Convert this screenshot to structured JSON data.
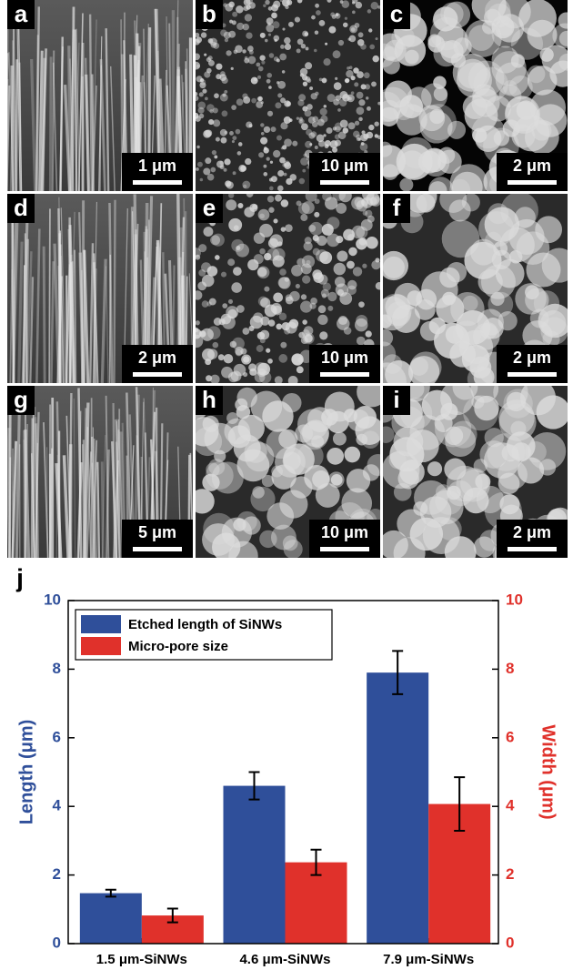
{
  "panels": [
    {
      "label": "a",
      "scale": "1 μm"
    },
    {
      "label": "b",
      "scale": "10 μm"
    },
    {
      "label": "c",
      "scale": "2 μm"
    },
    {
      "label": "d",
      "scale": "2 μm"
    },
    {
      "label": "e",
      "scale": "10 μm"
    },
    {
      "label": "f",
      "scale": "2 μm"
    },
    {
      "label": "g",
      "scale": "5 μm"
    },
    {
      "label": "h",
      "scale": "10 μm"
    },
    {
      "label": "i",
      "scale": "2 μm"
    }
  ],
  "chart_data": {
    "type": "bar",
    "panel_label": "j",
    "categories": [
      "1.5 μm-SiNWs",
      "4.6 μm-SiNWs",
      "7.9 μm-SiNWs"
    ],
    "series": [
      {
        "name": "Etched length of SiNWs",
        "color": "#2f4f9a",
        "values": [
          1.47,
          4.6,
          7.9
        ],
        "errors": [
          0.1,
          0.4,
          0.63
        ]
      },
      {
        "name": "Micro-pore size",
        "color": "#e0312b",
        "axis": "y2",
        "values": [
          0.82,
          2.37,
          4.07
        ],
        "errors": [
          0.2,
          0.37,
          0.78
        ]
      }
    ],
    "y_label": "Length (μm)",
    "y2_label": "Width (μm)",
    "ylim": [
      0,
      10
    ],
    "yticks": [
      0,
      2,
      4,
      6,
      8,
      10
    ],
    "y2lim": [
      0,
      10
    ],
    "y2ticks": [
      0,
      2,
      4,
      6,
      8,
      10
    ],
    "legend": "upper-left"
  }
}
